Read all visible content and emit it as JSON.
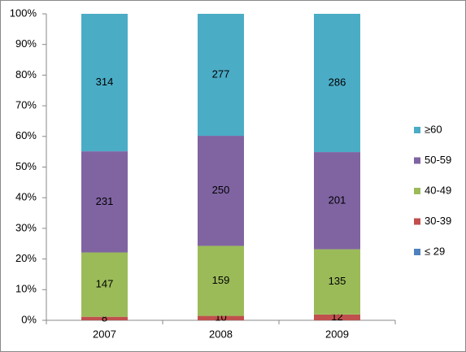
{
  "chart_data": {
    "type": "bar",
    "stacked": "percent",
    "categories": [
      "2007",
      "2008",
      "2009"
    ],
    "series": [
      {
        "name": "≤ 29",
        "color": "#4f81bd",
        "values": [
          0,
          0,
          0
        ]
      },
      {
        "name": "30-39",
        "color": "#c0504d",
        "values": [
          8,
          10,
          12
        ]
      },
      {
        "name": "40-49",
        "color": "#9bbb59",
        "values": [
          147,
          159,
          135
        ]
      },
      {
        "name": "50-59",
        "color": "#8064a2",
        "values": [
          231,
          250,
          201
        ]
      },
      {
        "name": "≥60",
        "color": "#4bacc6",
        "values": [
          314,
          277,
          286
        ]
      }
    ],
    "ylim": [
      0,
      100
    ],
    "yticks": [
      {
        "value": 0,
        "label": "0%"
      },
      {
        "value": 10,
        "label": "10%"
      },
      {
        "value": 20,
        "label": "20%"
      },
      {
        "value": 30,
        "label": "30%"
      },
      {
        "value": 40,
        "label": "40%"
      },
      {
        "value": 50,
        "label": "50%"
      },
      {
        "value": 60,
        "label": "60%"
      },
      {
        "value": 70,
        "label": "70%"
      },
      {
        "value": 80,
        "label": "80%"
      },
      {
        "value": 90,
        "label": "90%"
      },
      {
        "value": 100,
        "label": "100%"
      }
    ],
    "grid": false,
    "legend": "right"
  }
}
